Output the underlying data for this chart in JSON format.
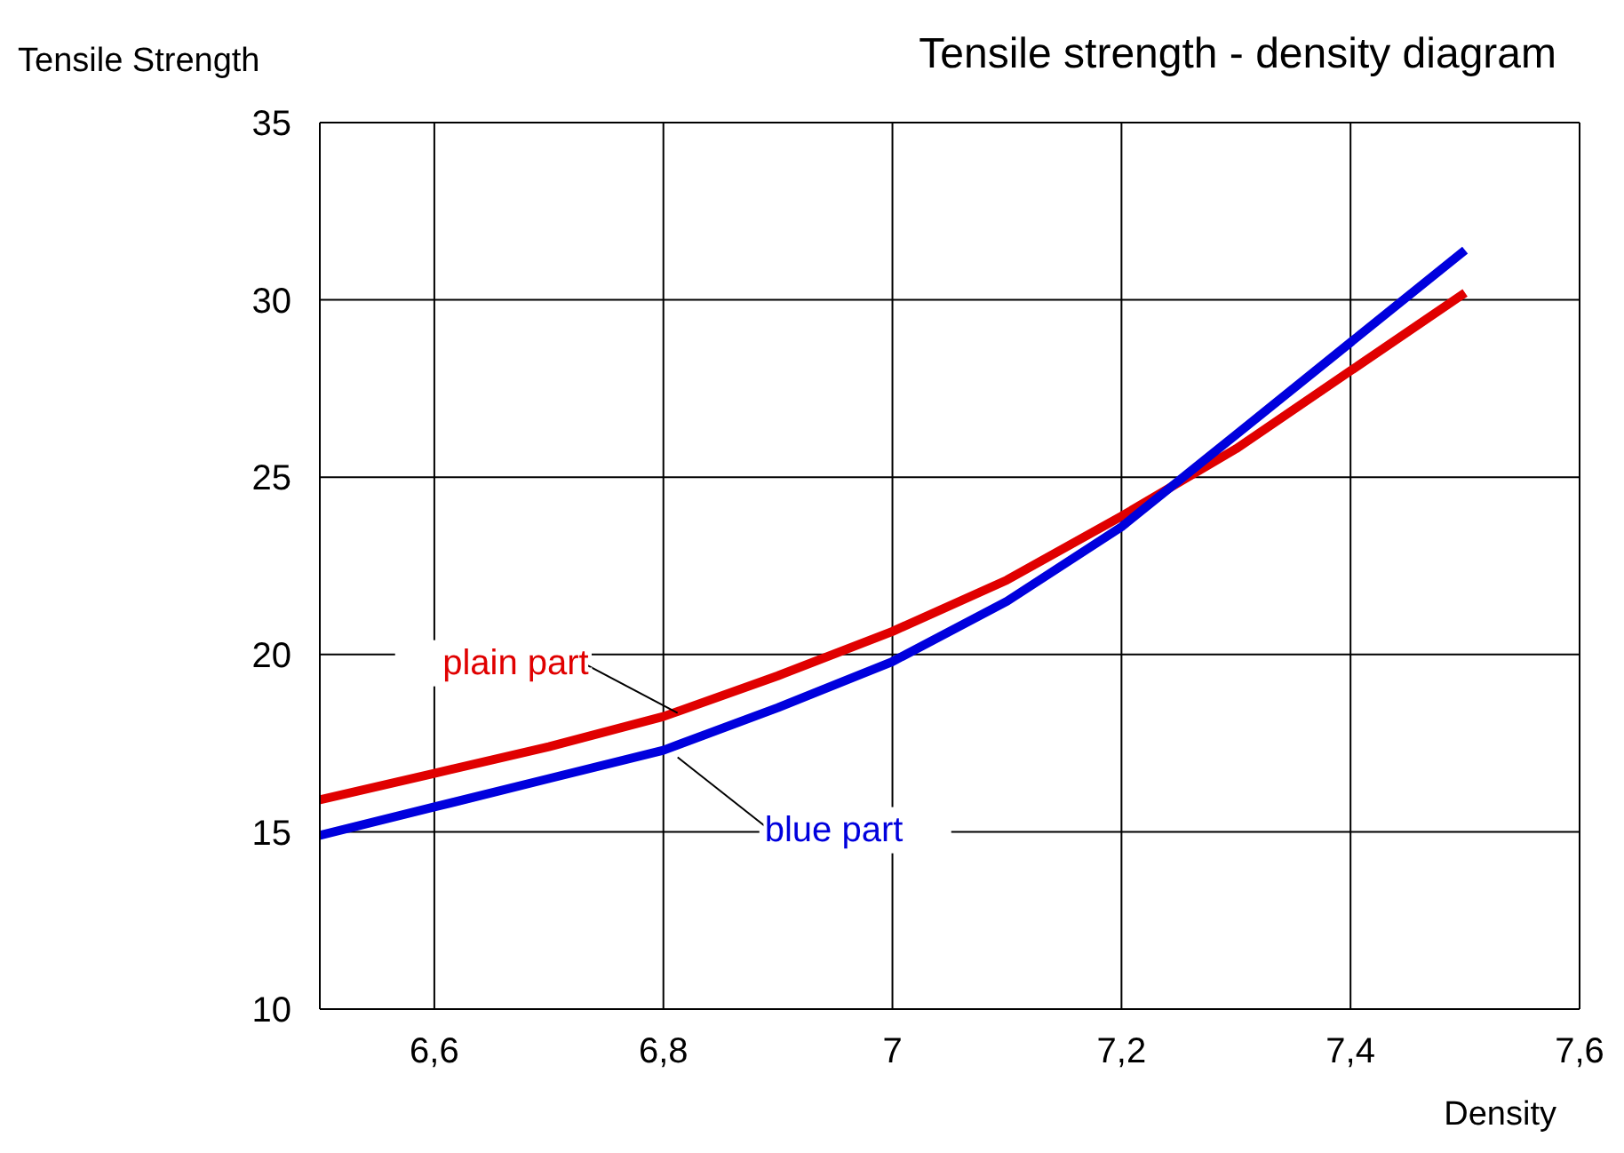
{
  "chart_data": {
    "type": "line",
    "title": "Tensile strength - density diagram",
    "xlabel": "Density",
    "ylabel": "Tensile Strength",
    "x": [
      6.5,
      6.6,
      6.7,
      6.8,
      6.9,
      7.0,
      7.1,
      7.2,
      7.3,
      7.4,
      7.5
    ],
    "series": [
      {
        "name": "plain part",
        "color": "#e00000",
        "values": [
          15.9,
          16.65,
          17.4,
          18.25,
          19.4,
          20.65,
          22.1,
          23.9,
          25.8,
          28.0,
          30.2
        ]
      },
      {
        "name": "blue part",
        "color": "#0000dd",
        "values": [
          14.9,
          15.7,
          16.5,
          17.3,
          18.5,
          19.8,
          21.5,
          23.6,
          26.2,
          28.8,
          31.4
        ]
      }
    ],
    "xlim": [
      6.5,
      7.6
    ],
    "xticks": [
      {
        "value": 6.6,
        "label": "6,6"
      },
      {
        "value": 6.8,
        "label": "6,8"
      },
      7,
      {
        "value": 7.2,
        "label": "7,2"
      },
      {
        "value": 7.4,
        "label": "7,4"
      },
      {
        "value": 7.6,
        "label": "7,6"
      }
    ],
    "ylim": [
      10,
      35
    ],
    "yticks": [
      10,
      15,
      20,
      25,
      30,
      35
    ],
    "grid": true,
    "marker": "none",
    "line_style": "solid"
  }
}
